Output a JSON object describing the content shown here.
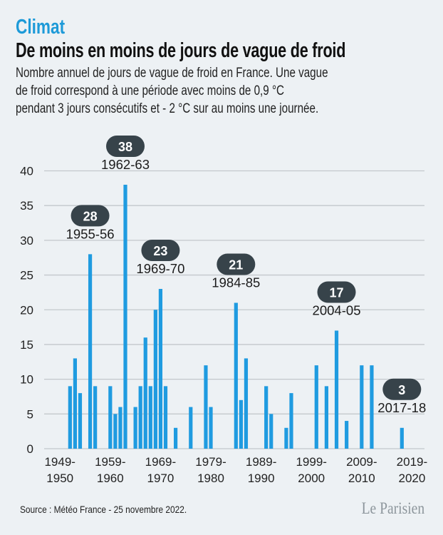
{
  "header": {
    "kicker": "Climat",
    "title": "De moins en moins de jours de vague de froid",
    "subtitle_lines": [
      "Nombre annuel de jours de vague de froid en France. Une vague",
      "de froid correspond à une période avec moins de 0,9 °C",
      "pendant 3 jours consécutifs et - 2 °C sur au moins une journée."
    ]
  },
  "footer": {
    "source": "Source : Météo France - 25 novembre 2022.",
    "logo": "Le Parisien"
  },
  "colors": {
    "bar": "#1f9be0",
    "callout": "#37434a",
    "kicker": "#1d9ad8",
    "background": "#edf1f4",
    "grid": "#c3c8cc"
  },
  "chart_data": {
    "type": "bar",
    "title": "De moins en moins de jours de vague de froid",
    "xlabel": "",
    "ylabel": "",
    "ylim": [
      0,
      40
    ],
    "yticks": [
      0,
      5,
      10,
      15,
      20,
      25,
      30,
      35,
      40
    ],
    "grid": true,
    "xtick_labels": [
      [
        "1949-",
        "1950"
      ],
      [
        "1959-",
        "1960"
      ],
      [
        "1969-",
        "1970"
      ],
      [
        "1979-",
        "1980"
      ],
      [
        "1989-",
        "1990"
      ],
      [
        "1999-",
        "2000"
      ],
      [
        "2009-",
        "2010"
      ],
      [
        "2019-",
        "2020"
      ]
    ],
    "xtick_years": [
      1949,
      1959,
      1969,
      1979,
      1989,
      1999,
      2009,
      2019
    ],
    "x": [
      1951,
      1952,
      1953,
      1955,
      1956,
      1959,
      1960,
      1961,
      1962,
      1964,
      1965,
      1966,
      1967,
      1968,
      1969,
      1970,
      1972,
      1975,
      1978,
      1979,
      1984,
      1985,
      1986,
      1990,
      1991,
      1994,
      1995,
      2000,
      2002,
      2004,
      2006,
      2009,
      2011,
      2017
    ],
    "values": [
      9,
      13,
      8,
      28,
      9,
      9,
      5,
      6,
      38,
      6,
      9,
      16,
      9,
      20,
      23,
      9,
      3,
      6,
      12,
      6,
      21,
      7,
      13,
      9,
      5,
      3,
      8,
      12,
      9,
      17,
      4,
      12,
      12,
      3
    ],
    "annotations": [
      {
        "year": 1955,
        "value": "28",
        "label": "1955-56"
      },
      {
        "year": 1962,
        "value": "38",
        "label": "1962-63"
      },
      {
        "year": 1969,
        "value": "23",
        "label": "1969-70"
      },
      {
        "year": 1984,
        "value": "21",
        "label": "1984-85"
      },
      {
        "year": 2004,
        "value": "17",
        "label": "2004-05"
      },
      {
        "year": 2017,
        "value": "3",
        "label": "2017-18"
      }
    ]
  }
}
